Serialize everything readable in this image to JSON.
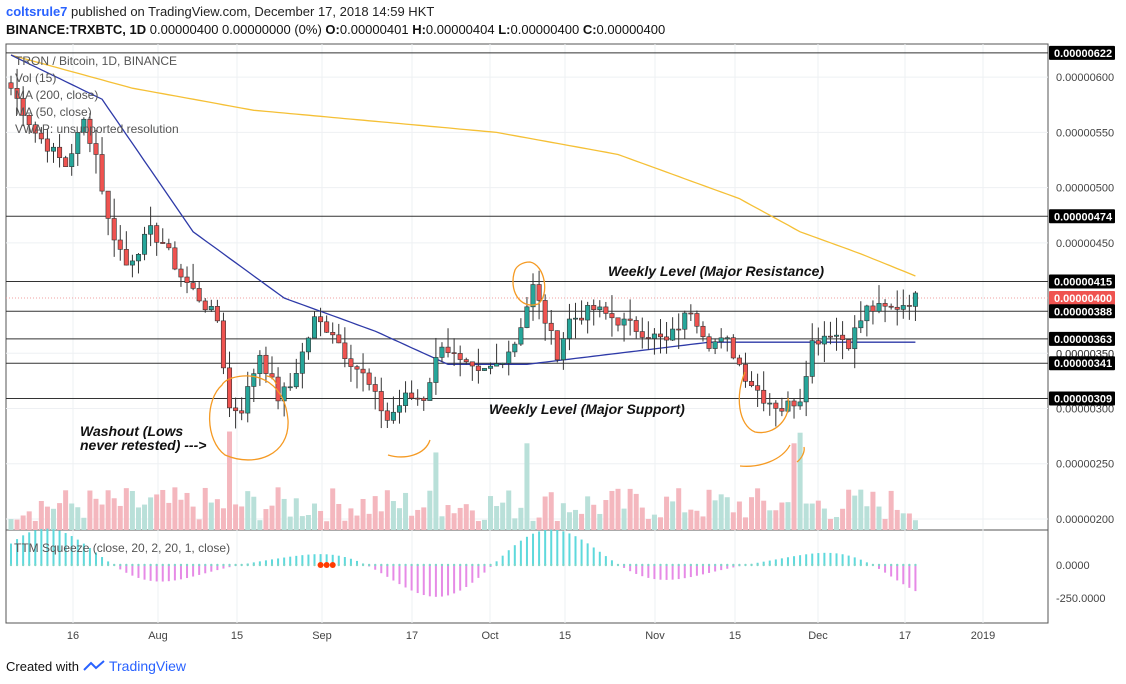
{
  "header": {
    "username": "coltsrule7",
    "published_text": "published on TradingView.com, December 17, 2018 14:59 HKT",
    "symbol": "BINANCE:TRXBTC, 1D",
    "change": "0.00000400 0.00000000 (0%)",
    "o_label": "O:",
    "o_value": "0.00000401",
    "h_label": "H:",
    "h_value": "0.00000404",
    "l_label": "L:",
    "l_value": "0.00000400",
    "c_label": "C:",
    "c_value": "0.00000400"
  },
  "legend": {
    "title": "TRON / Bitcoin, 1D, BINANCE",
    "vol": "Vol (15)",
    "ma200": "MA (200, close)",
    "ma50": "MA (50, close)",
    "vwap": "VWAP: unsupported resolution"
  },
  "annotations": {
    "resistance": "Weekly Level (Major Resistance)",
    "support": "Weekly Level (Major Support)",
    "washout_line1": "Washout (Lows",
    "washout_line2": "never retested)  --->"
  },
  "indicator": {
    "title": "TTM Squeeze (close, 20, 2, 20, 1, close)",
    "tick_labels": [
      "0.0000",
      "-250.0000"
    ]
  },
  "footer": {
    "created_with": "Created with",
    "brand": "TradingView"
  },
  "colors": {
    "up": "#26a69a",
    "down": "#ef5350",
    "ma200": "#f5c036",
    "ma50": "#2e3aa8",
    "annotation": "#f59a23",
    "vol_up": "#b9e0d9",
    "vol_down": "#f4b7be",
    "sq_pos": "#5ed9dc",
    "sq_neg": "#e68ae6",
    "squeeze_dot": "#ff3b00"
  },
  "chart_data": {
    "type": "candlestick",
    "x_tick_labels": [
      "16",
      "Aug",
      "15",
      "Sep",
      "17",
      "Oct",
      "15",
      "Nov",
      "15",
      "Dec",
      "17",
      "2019"
    ],
    "y_tick_labels": [
      "0.00000600",
      "0.00000550",
      "0.00000500",
      "0.00000450",
      "0.00000350",
      "0.00000300",
      "0.00000250",
      "0.00000200"
    ],
    "y_ticks": [
      6e-06,
      5.5e-06,
      5e-06,
      4.5e-06,
      3.5e-06,
      3e-06,
      2.5e-06,
      2e-06
    ],
    "ylim": [
      1.9e-06,
      6.3e-06
    ],
    "price_labels": [
      {
        "text": "0.00000622",
        "value": 6.22e-06
      },
      {
        "text": "0.00000474",
        "value": 4.74e-06
      },
      {
        "text": "0.00000415",
        "value": 4.15e-06
      },
      {
        "text": "0.00000400",
        "value": 4e-06,
        "current": true
      },
      {
        "text": "0.00000388",
        "value": 3.88e-06
      },
      {
        "text": "0.00000363",
        "value": 3.63e-06
      },
      {
        "text": "0.00000341",
        "value": 3.41e-06
      },
      {
        "text": "0.00000309",
        "value": 3.09e-06
      }
    ],
    "hidden_label": "0.00000350",
    "horizontal_levels": [
      6.22e-06,
      4.74e-06,
      4.15e-06,
      3.88e-06,
      3.63e-06,
      3.41e-06,
      3.09e-06
    ],
    "keypoints": [
      [
        0,
        5.9e-06
      ],
      [
        4,
        5.5e-06
      ],
      [
        9,
        5.2e-06
      ],
      [
        12,
        5.6e-06
      ],
      [
        14,
        5.3e-06
      ],
      [
        16,
        4.7e-06
      ],
      [
        19,
        4.3e-06
      ],
      [
        23,
        4.6e-06
      ],
      [
        25,
        4.5e-06
      ],
      [
        28,
        4.2e-06
      ],
      [
        31,
        4e-06
      ],
      [
        34,
        3.8e-06
      ],
      [
        36,
        3e-06
      ],
      [
        38,
        3e-06
      ],
      [
        41,
        3.5e-06
      ],
      [
        44,
        3.1e-06
      ],
      [
        46,
        3.2e-06
      ],
      [
        50,
        3.8e-06
      ],
      [
        53,
        3.7e-06
      ],
      [
        55,
        3.5e-06
      ],
      [
        58,
        3.3e-06
      ],
      [
        62,
        2.9e-06
      ],
      [
        65,
        3.1e-06
      ],
      [
        68,
        3.1e-06
      ],
      [
        71,
        3.6e-06
      ],
      [
        74,
        3.4e-06
      ],
      [
        77,
        3.3e-06
      ],
      [
        80,
        3.4e-06
      ],
      [
        83,
        3.6e-06
      ],
      [
        86,
        4.1e-06
      ],
      [
        88,
        3.8e-06
      ],
      [
        90,
        3.5e-06
      ],
      [
        92,
        3.8e-06
      ],
      [
        96,
        3.9e-06
      ],
      [
        100,
        3.8e-06
      ],
      [
        104,
        3.7e-06
      ],
      [
        108,
        3.6e-06
      ],
      [
        112,
        3.9e-06
      ],
      [
        115,
        3.6e-06
      ],
      [
        118,
        3.6e-06
      ],
      [
        121,
        3.3e-06
      ],
      [
        124,
        3.1e-06
      ],
      [
        127,
        3e-06
      ],
      [
        130,
        3.1e-06
      ],
      [
        132,
        3.6e-06
      ],
      [
        135,
        3.7e-06
      ],
      [
        138,
        3.6e-06
      ],
      [
        141,
        3.9e-06
      ],
      [
        145,
        3.9e-06
      ],
      [
        149,
        4e-06
      ]
    ],
    "ma200": [
      [
        0,
        6.2e-06
      ],
      [
        20,
        5.9e-06
      ],
      [
        40,
        5.7e-06
      ],
      [
        60,
        5.6e-06
      ],
      [
        80,
        5.5e-06
      ],
      [
        100,
        5.3e-06
      ],
      [
        110,
        5.1e-06
      ],
      [
        120,
        4.9e-06
      ],
      [
        130,
        4.6e-06
      ],
      [
        140,
        4.4e-06
      ],
      [
        149,
        4.2e-06
      ]
    ],
    "ma50": [
      [
        0,
        6.2e-06
      ],
      [
        15,
        5.8e-06
      ],
      [
        30,
        4.6e-06
      ],
      [
        45,
        4e-06
      ],
      [
        60,
        3.7e-06
      ],
      [
        72,
        3.4e-06
      ],
      [
        85,
        3.4e-06
      ],
      [
        100,
        3.5e-06
      ],
      [
        115,
        3.6e-06
      ],
      [
        125,
        3.6e-06
      ],
      [
        135,
        3.6e-06
      ],
      [
        149,
        3.6e-06
      ]
    ]
  }
}
